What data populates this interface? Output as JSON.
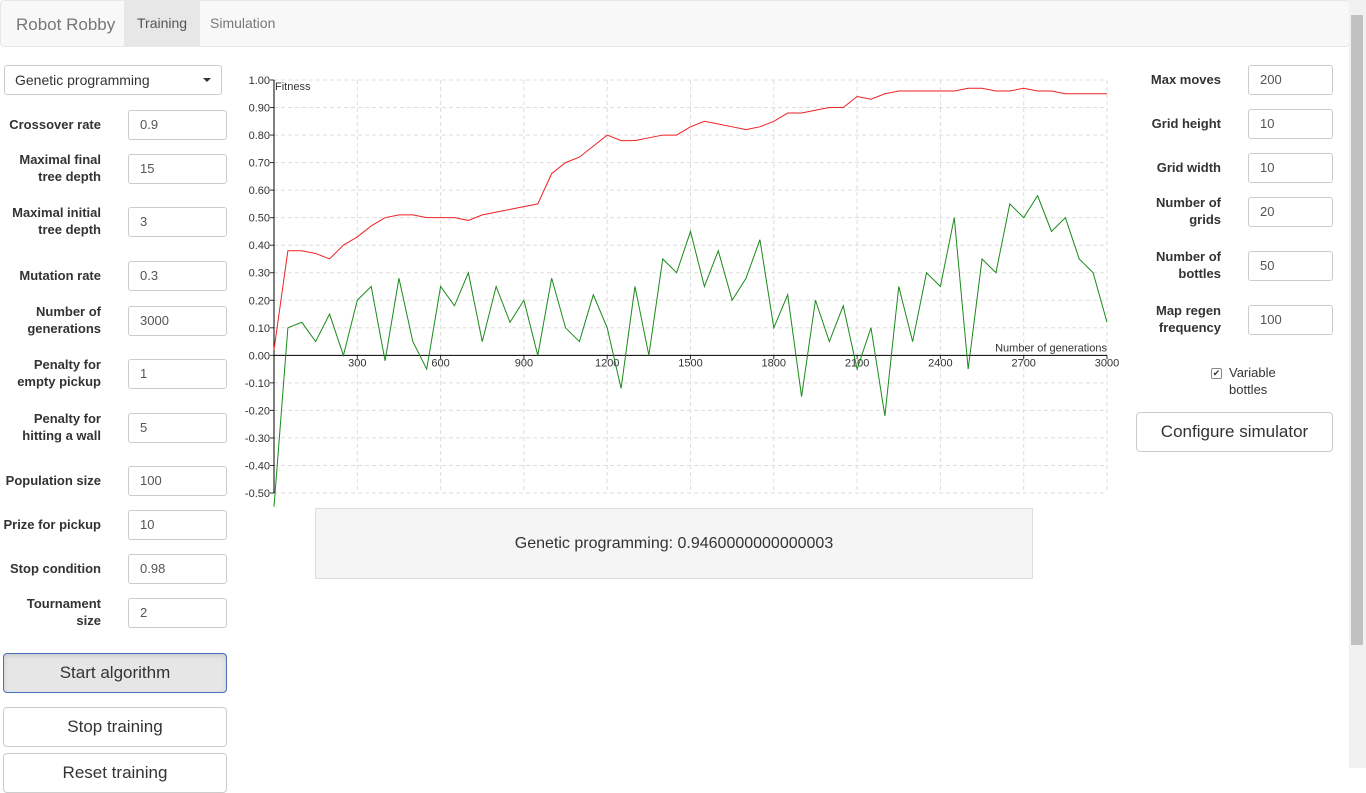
{
  "navbar": {
    "brand": "Robot Robby",
    "tabs": [
      "Training",
      "Simulation"
    ]
  },
  "left_form": {
    "algorithm": "Genetic programming",
    "fields": [
      {
        "label": "Crossover rate",
        "value": "0.9"
      },
      {
        "label": "Maximal final tree depth",
        "value": "15"
      },
      {
        "label": "Maximal initial tree depth",
        "value": "3"
      },
      {
        "label": "Mutation rate",
        "value": "0.3"
      },
      {
        "label": "Number of generations",
        "value": "3000"
      },
      {
        "label": "Penalty for empty pickup",
        "value": "1"
      },
      {
        "label": "Penalty for hitting a wall",
        "value": "5"
      },
      {
        "label": "Population size",
        "value": "100"
      },
      {
        "label": "Prize for pickup",
        "value": "10"
      },
      {
        "label": "Stop condition",
        "value": "0.98"
      },
      {
        "label": "Tournament size",
        "value": "2"
      }
    ],
    "buttons": [
      "Start algorithm",
      "Stop training",
      "Reset training"
    ]
  },
  "right_form": {
    "fields": [
      {
        "label": "Max moves",
        "value": "200"
      },
      {
        "label": "Grid height",
        "value": "10"
      },
      {
        "label": "Grid width",
        "value": "10"
      },
      {
        "label": "Number of grids",
        "value": "20"
      },
      {
        "label": "Number of bottles",
        "value": "50"
      },
      {
        "label": "Map regen frequency",
        "value": "100"
      }
    ],
    "checkbox": "Variable bottles",
    "button": "Configure simulator"
  },
  "result": "Genetic programming: 0.9460000000000003",
  "chart_data": {
    "type": "line",
    "y_label": "Fitness",
    "x_label": "Number of generations",
    "xlim": [
      0,
      3000
    ],
    "ylim": [
      -0.5,
      1.0
    ],
    "xticks": [
      300,
      600,
      900,
      1200,
      1500,
      1800,
      2100,
      2400,
      2700,
      3000
    ],
    "yticks": [
      {
        "value": 1.0,
        "label": "1.00"
      },
      {
        "value": 0.9,
        "label": "0.90"
      },
      {
        "value": 0.8,
        "label": "0.80"
      },
      {
        "value": 0.7,
        "label": "0.70"
      },
      {
        "value": 0.6,
        "label": "0.60"
      },
      {
        "value": 0.5,
        "label": "0.50"
      },
      {
        "value": 0.4,
        "label": "0.40"
      },
      {
        "value": 0.3,
        "label": "0.30"
      },
      {
        "value": 0.2,
        "label": "0.20"
      },
      {
        "value": 0.1,
        "label": "0.10"
      },
      {
        "value": 0.0,
        "label": "0.00"
      },
      {
        "value": -0.1,
        "label": "-0.10"
      },
      {
        "value": -0.2,
        "label": "-0.20"
      },
      {
        "value": -0.3,
        "label": "-0.30"
      },
      {
        "value": -0.4,
        "label": "-0.40"
      },
      {
        "value": -0.5,
        "label": "-0.50"
      }
    ],
    "grid": true,
    "x": [
      0,
      50,
      100,
      150,
      200,
      250,
      300,
      350,
      400,
      450,
      500,
      550,
      600,
      650,
      700,
      750,
      800,
      850,
      900,
      950,
      1000,
      1050,
      1100,
      1150,
      1200,
      1250,
      1300,
      1350,
      1400,
      1450,
      1500,
      1550,
      1600,
      1650,
      1700,
      1750,
      1800,
      1850,
      1900,
      1950,
      2000,
      2050,
      2100,
      2150,
      2200,
      2250,
      2300,
      2350,
      2400,
      2450,
      2500,
      2550,
      2600,
      2650,
      2700,
      2750,
      2800,
      2850,
      2900,
      2950,
      3000
    ],
    "series": [
      {
        "color": "#ee2222",
        "values": [
          0.02,
          0.38,
          0.38,
          0.37,
          0.35,
          0.4,
          0.43,
          0.47,
          0.5,
          0.51,
          0.51,
          0.5,
          0.5,
          0.5,
          0.49,
          0.51,
          0.52,
          0.53,
          0.54,
          0.55,
          0.66,
          0.7,
          0.72,
          0.76,
          0.8,
          0.78,
          0.78,
          0.79,
          0.8,
          0.8,
          0.83,
          0.85,
          0.84,
          0.83,
          0.82,
          0.83,
          0.85,
          0.88,
          0.88,
          0.89,
          0.9,
          0.9,
          0.94,
          0.93,
          0.95,
          0.96,
          0.96,
          0.96,
          0.96,
          0.96,
          0.97,
          0.97,
          0.96,
          0.96,
          0.97,
          0.96,
          0.96,
          0.95,
          0.95,
          0.95,
          0.95
        ]
      },
      {
        "color": "#1a8a1a",
        "values": [
          -0.55,
          0.1,
          0.12,
          0.05,
          0.15,
          0.0,
          0.2,
          0.25,
          -0.02,
          0.28,
          0.05,
          -0.05,
          0.25,
          0.18,
          0.3,
          0.05,
          0.25,
          0.12,
          0.2,
          0.0,
          0.28,
          0.1,
          0.05,
          0.22,
          0.1,
          -0.12,
          0.25,
          0.0,
          0.35,
          0.3,
          0.45,
          0.25,
          0.38,
          0.2,
          0.28,
          0.42,
          0.1,
          0.22,
          -0.15,
          0.2,
          0.05,
          0.18,
          -0.05,
          0.1,
          -0.22,
          0.25,
          0.05,
          0.3,
          0.25,
          0.5,
          -0.05,
          0.35,
          0.3,
          0.55,
          0.5,
          0.58,
          0.45,
          0.5,
          0.35,
          0.3,
          0.12
        ]
      }
    ]
  }
}
